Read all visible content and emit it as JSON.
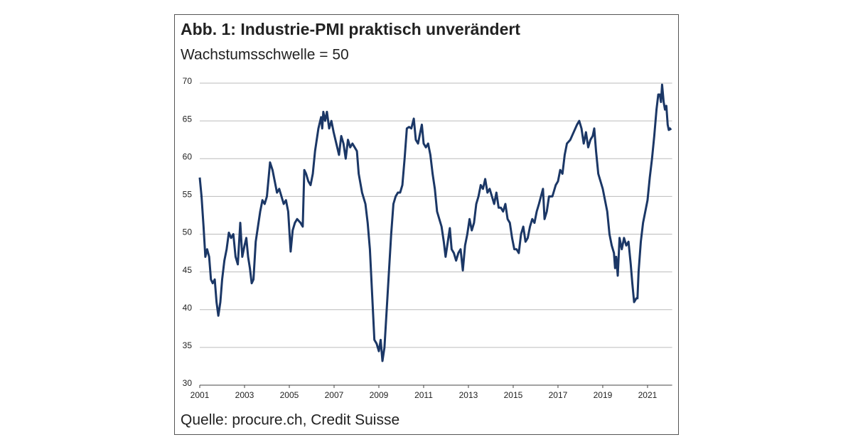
{
  "chart_data": {
    "type": "line",
    "title": "Abb. 1: Industrie-PMI praktisch unverändert",
    "subtitle": "Wachstumsschwelle = 50",
    "source": "Quelle: procure.ch, Credit Suisse",
    "x": [
      2001.0,
      2001.08,
      2001.17,
      2001.25,
      2001.33,
      2001.42,
      2001.5,
      2001.58,
      2001.67,
      2001.75,
      2001.83,
      2001.92,
      2002.0,
      2002.1,
      2002.2,
      2002.3,
      2002.4,
      2002.5,
      2002.6,
      2002.7,
      2002.81,
      2002.9,
      2003.0,
      2003.08,
      2003.16,
      2003.24,
      2003.32,
      2003.4,
      2003.5,
      2003.6,
      2003.7,
      2003.8,
      2003.9,
      2004.0,
      2004.14,
      2004.25,
      2004.35,
      2004.45,
      2004.55,
      2004.65,
      2004.75,
      2004.85,
      2004.95,
      2005.06,
      2005.15,
      2005.25,
      2005.35,
      2005.5,
      2005.6,
      2005.67,
      2005.75,
      2005.85,
      2005.95,
      2006.05,
      2006.15,
      2006.3,
      2006.42,
      2006.47,
      2006.52,
      2006.6,
      2006.68,
      2006.78,
      2006.88,
      2006.98,
      2007.1,
      2007.22,
      2007.32,
      2007.42,
      2007.52,
      2007.62,
      2007.72,
      2007.82,
      2007.92,
      2008.02,
      2008.1,
      2008.25,
      2008.4,
      2008.5,
      2008.6,
      2008.7,
      2008.8,
      2008.9,
      2009.0,
      2009.08,
      2009.16,
      2009.25,
      2009.35,
      2009.45,
      2009.55,
      2009.65,
      2009.75,
      2009.85,
      2009.95,
      2010.05,
      2010.15,
      2010.25,
      2010.35,
      2010.45,
      2010.56,
      2010.65,
      2010.75,
      2010.85,
      2010.92,
      2011.0,
      2011.1,
      2011.2,
      2011.3,
      2011.4,
      2011.5,
      2011.6,
      2011.7,
      2011.8,
      2011.9,
      2011.98,
      2012.08,
      2012.17,
      2012.25,
      2012.35,
      2012.45,
      2012.55,
      2012.65,
      2012.75,
      2012.85,
      2012.95,
      2013.05,
      2013.15,
      2013.25,
      2013.35,
      2013.45,
      2013.55,
      2013.65,
      2013.75,
      2013.85,
      2013.95,
      2014.05,
      2014.15,
      2014.25,
      2014.35,
      2014.45,
      2014.55,
      2014.65,
      2014.75,
      2014.85,
      2014.95,
      2015.05,
      2015.15,
      2015.25,
      2015.35,
      2015.45,
      2015.55,
      2015.65,
      2015.75,
      2015.85,
      2015.95,
      2016.05,
      2016.15,
      2016.33,
      2016.4,
      2016.5,
      2016.6,
      2016.75,
      2016.9,
      2017.0,
      2017.1,
      2017.2,
      2017.3,
      2017.4,
      2017.55,
      2017.7,
      2017.85,
      2017.95,
      2018.05,
      2018.15,
      2018.25,
      2018.35,
      2018.45,
      2018.55,
      2018.62,
      2018.7,
      2018.8,
      2018.9,
      2019.0,
      2019.1,
      2019.2,
      2019.3,
      2019.4,
      2019.5,
      2019.55,
      2019.6,
      2019.67,
      2019.75,
      2019.85,
      2019.95,
      2020.05,
      2020.15,
      2020.25,
      2020.32,
      2020.4,
      2020.5,
      2020.55,
      2020.6,
      2020.7,
      2020.8,
      2020.9,
      2021.0,
      2021.1,
      2021.2,
      2021.3,
      2021.4,
      2021.48,
      2021.55,
      2021.6,
      2021.65,
      2021.72,
      2021.78,
      2021.84,
      2021.9,
      2021.95,
      2022.0,
      2022.05
    ],
    "series": [
      {
        "color": "#1b3766",
        "values": [
          57.5,
          55,
          51,
          47,
          48,
          47,
          44,
          43.5,
          44,
          41,
          39.2,
          41,
          44,
          46.5,
          48,
          50.2,
          49.5,
          50,
          47,
          46,
          51.5,
          47,
          48.5,
          49.5,
          47,
          45.5,
          43.5,
          44,
          49,
          51,
          53,
          54.5,
          54,
          55,
          59.5,
          58.5,
          57,
          55.5,
          56,
          55,
          54,
          54.5,
          53,
          47.7,
          50.5,
          51.5,
          52,
          51.5,
          51,
          58.5,
          58,
          57,
          56.5,
          58,
          61,
          64,
          65.5,
          64,
          66.2,
          65,
          66.2,
          64,
          65,
          63.5,
          62,
          60.5,
          63,
          62,
          60,
          62.5,
          61.5,
          62,
          61.5,
          61,
          58,
          55.5,
          54,
          51.5,
          48,
          42,
          36,
          35.5,
          34.5,
          36,
          33.2,
          35,
          40,
          45,
          50,
          54,
          55,
          55.5,
          55.5,
          56.5,
          60,
          64,
          64.2,
          64,
          65.3,
          62.5,
          62,
          63.5,
          64.5,
          62,
          61.5,
          62,
          60.5,
          58,
          56,
          53,
          52,
          51,
          49,
          47,
          49,
          50.8,
          48,
          47.5,
          46.5,
          47.5,
          48,
          45.2,
          48.5,
          50,
          52,
          50.5,
          51.5,
          54,
          55,
          56.5,
          56,
          57.3,
          55.5,
          56,
          55,
          54,
          55.5,
          53.5,
          53.5,
          53,
          54,
          52,
          51.5,
          49.5,
          48,
          48,
          47.5,
          50,
          51,
          49,
          49.5,
          51,
          52,
          51.5,
          53,
          54,
          56,
          52,
          53,
          55,
          55,
          56.5,
          57,
          58.5,
          58,
          60.5,
          62,
          62.5,
          63.5,
          64.5,
          65,
          64,
          62,
          63.5,
          61.5,
          62.5,
          63,
          64,
          61,
          58,
          57,
          56,
          54.5,
          53,
          50,
          48.5,
          47.5,
          45.5,
          47,
          44.5,
          49.5,
          48,
          49.5,
          48.5,
          49,
          46,
          43.5,
          41,
          41.5,
          41.5,
          45,
          49,
          51.5,
          53,
          54.5,
          57.5,
          60,
          63,
          66.5,
          68.5,
          68.5,
          67.5,
          69.8,
          67.5,
          66.5,
          67,
          64.5,
          63.8,
          64,
          63.8
        ]
      }
    ],
    "xlim": [
      2001,
      2022.1
    ],
    "xticks": [
      2001,
      2003,
      2005,
      2007,
      2009,
      2011,
      2013,
      2015,
      2017,
      2019,
      2021
    ],
    "ylim": [
      30,
      70
    ],
    "yticks": [
      30,
      35,
      40,
      45,
      50,
      55,
      60,
      65,
      70
    ],
    "grid": true
  }
}
